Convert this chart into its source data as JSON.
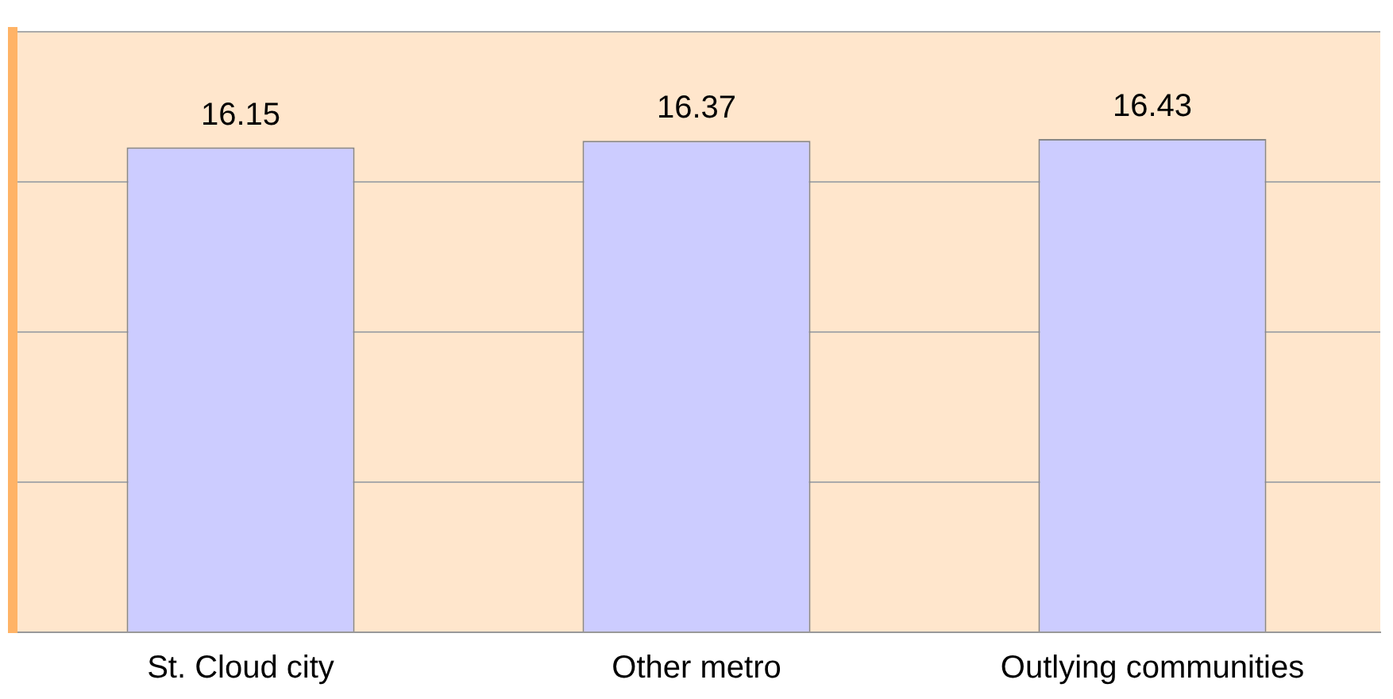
{
  "chart_data": {
    "type": "bar",
    "categories": [
      "St. Cloud city",
      "Other metro",
      "Outlying communities"
    ],
    "values": [
      16.15,
      16.37,
      16.43
    ],
    "color": "#ccccff",
    "grid": "y",
    "tick_labels": "x",
    "data_labels": true,
    "legend": false
  }
}
